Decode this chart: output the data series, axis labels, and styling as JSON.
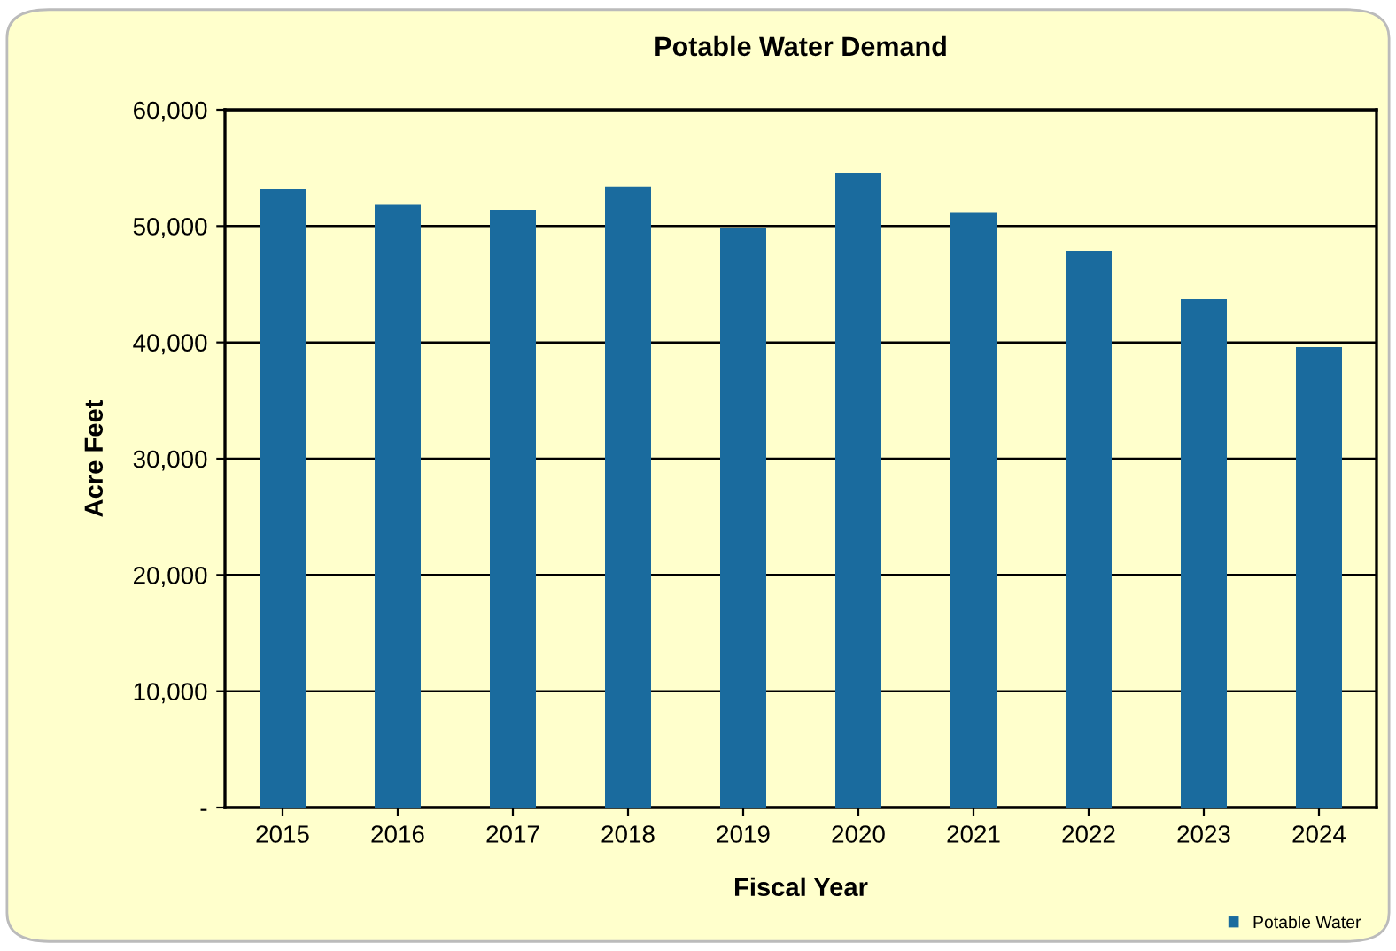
{
  "chart_data": {
    "type": "bar",
    "title": "Potable Water Demand",
    "xlabel": "Fiscal Year",
    "ylabel": "Acre Feet",
    "categories": [
      "2015",
      "2016",
      "2017",
      "2018",
      "2019",
      "2020",
      "2021",
      "2022",
      "2023",
      "2024"
    ],
    "series": [
      {
        "name": "Potable Water",
        "color": "#1a6b9e",
        "values": [
          53200,
          51900,
          51400,
          53400,
          49800,
          54600,
          51200,
          47900,
          43700,
          39600
        ]
      }
    ],
    "ylim": [
      0,
      60000
    ],
    "yticks": [
      {
        "value": 0,
        "label": "-"
      },
      {
        "value": 10000,
        "label": "10,000"
      },
      {
        "value": 20000,
        "label": "20,000"
      },
      {
        "value": 30000,
        "label": "30,000"
      },
      {
        "value": 40000,
        "label": "40,000"
      },
      {
        "value": 50000,
        "label": "50,000"
      },
      {
        "value": 60000,
        "label": "60,000"
      }
    ],
    "grid": "y",
    "legend": "bottom right"
  }
}
